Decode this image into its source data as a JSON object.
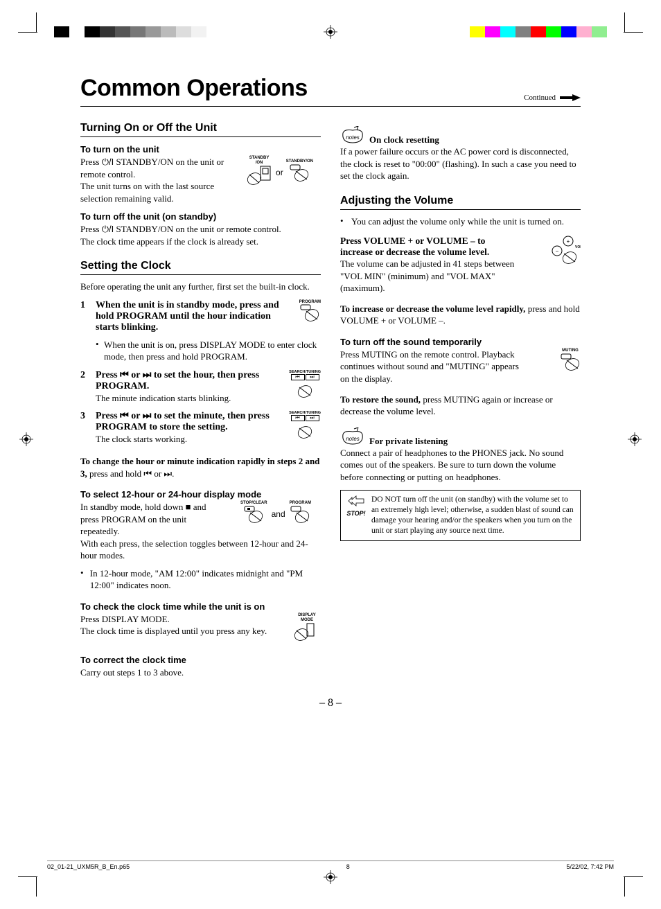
{
  "colorbar_left": [
    "#000000",
    "#ffffff",
    "#000000",
    "#333333",
    "#555555",
    "#777777",
    "#999999",
    "#bbbbbb",
    "#dddddd",
    "#f2f2f2"
  ],
  "colorbar_right": [
    "#ffff00",
    "#ff00ff",
    "#00ffff",
    "#808080",
    "#ff0000",
    "#00ff00",
    "#0000ff",
    "#ffb0d0",
    "#90ee90"
  ],
  "header": {
    "title": "Common Operations",
    "continued": "Continued"
  },
  "left": {
    "sec1_title": "Turning On or Off the Unit",
    "turn_on_head": "To turn on the unit",
    "turn_on_1a": "Press ",
    "turn_on_1b": " STANDBY/ON on the unit or remote control.",
    "turn_on_2": "The unit turns on with the last source selection remaining valid.",
    "standby_label1": "STANDBY\n/ON",
    "standby_label2": "STANDBY/ON",
    "or": "or",
    "turn_off_head": "To turn off the unit (on standby)",
    "turn_off_1a": "Press ",
    "turn_off_1b": " STANDBY/ON on the unit or remote control.",
    "turn_off_2": "The clock time appears if the clock is already set.",
    "sec2_title": "Setting the Clock",
    "clock_intro": "Before operating the unit any further, first set the built-in clock.",
    "step1": "When the unit is in standby mode, press and hold PROGRAM until the hour indication starts blinking.",
    "program_label": "PROGRAM",
    "step1_note": "When the unit is on, press DISPLAY MODE to enter clock mode, then press and hold PROGRAM.",
    "step2a": "Press ",
    "step2b": " or ",
    "step2c": " to set the hour, then press PROGRAM.",
    "step2_sub": "The minute indication starts blinking.",
    "search_label": "SEARCH/TUNING",
    "step3a": "Press ",
    "step3b": " or ",
    "step3c": " to set the minute, then press PROGRAM to store the setting.",
    "step3_sub": "The clock starts working.",
    "rapid_a": "To change the hour or minute indication rapidly in steps 2 and 3,",
    "rapid_b": " press and hold ",
    "rapid_c": " or ",
    "rapid_d": ".",
    "mode_head": "To select 12-hour or 24-hour display mode",
    "mode_text1": "In standby mode, hold down ■ and press PROGRAM on the unit repeatedly.",
    "mode_text2": "With each press, the selection toggles between 12-hour and 24-hour modes.",
    "stopclear_label": "STOP/CLEAR",
    "and": "and",
    "mode_note": "In 12-hour mode, \"AM 12:00\" indicates midnight and \"PM 12:00\" indicates noon.",
    "check_head": "To check the clock time while the unit is on",
    "check_1": "Press DISPLAY MODE.",
    "check_2": "The clock time is displayed until you press any key.",
    "display_label": "DISPLAY\nMODE",
    "correct_head": "To correct the clock time",
    "correct_text": "Carry out steps 1 to 3 above."
  },
  "right": {
    "reset_title": "On clock resetting",
    "reset_text": "If a power failure occurs or the AC power cord is disconnected, the clock is reset to \"00:00\" (flashing). In such a case you need to set the clock again.",
    "sec3_title": "Adjusting the Volume",
    "vol_note": "You can adjust the volume only while the unit is turned on.",
    "vol_head": "Press VOLUME + or VOLUME – to increase or decrease the volume level.",
    "vol_text": "The volume can be adjusted in 41 steps between \"VOL MIN\" (minimum) and \"VOL MAX\" (maximum).",
    "volume_label": "VOLUME",
    "rapid_a": "To increase or decrease the volume level rapidly,",
    "rapid_b": " press and hold VOLUME + or VOLUME –.",
    "mute_head": "To turn off the sound temporarily",
    "mute_text": "Press MUTING on the remote control. Playback continues without sound and \"MUTING\" appears on the display.",
    "muting_label": "MUTING",
    "restore_a": "To restore the sound,",
    "restore_b": " press MUTING again or increase or decrease the volume level.",
    "private_title": "For private listening",
    "private_text": "Connect a pair of headphones to the PHONES jack. No sound comes out of the speakers. Be sure to turn down the volume before connecting or putting on headphones.",
    "stop_label": "STOP!",
    "stop_text": "DO NOT turn off the unit (on standby) with the volume set to an extremely high level; otherwise, a sudden blast of sound can damage your hearing and/or the speakers when you turn on the unit or start playing any source next time."
  },
  "page_number": "– 8 –",
  "footer": {
    "file": "02_01-21_UXM5R_B_En.p65",
    "page": "8",
    "datetime": "5/22/02, 7:42 PM"
  }
}
